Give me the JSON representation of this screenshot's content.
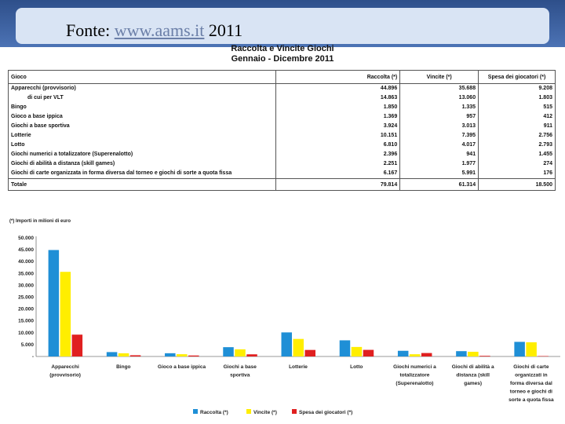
{
  "header": {
    "source_label": "Fonte: ",
    "source_link": "www.aams.it",
    "source_year": " 2011"
  },
  "document": {
    "title_line1": "Raccolta e Vincite Giochi",
    "title_line2": "Gennaio - Dicembre 2011",
    "note": "(*) Importi in milioni di euro"
  },
  "table": {
    "headers": [
      "Gioco",
      "Raccolta (*)",
      "Vincite (*)",
      "Spesa dei giocatori (*)"
    ],
    "rows": [
      [
        "Apparecchi (provvisorio)",
        "44.896",
        "35.688",
        "9.208"
      ],
      [
        "di cui per VLT",
        "14.863",
        "13.060",
        "1.803"
      ],
      [
        "Bingo",
        "1.850",
        "1.335",
        "515"
      ],
      [
        "Gioco a base ippica",
        "1.369",
        "957",
        "412"
      ],
      [
        "Giochi a base sportiva",
        "3.924",
        "3.013",
        "911"
      ],
      [
        "Lotterie",
        "10.151",
        "7.395",
        "2.756"
      ],
      [
        "Lotto",
        "6.810",
        "4.017",
        "2.793"
      ],
      [
        "Giochi numerici a totalizzatore (Superenalotto)",
        "2.396",
        "941",
        "1.455"
      ],
      [
        "Giochi di abilità a distanza (skill games)",
        "2.251",
        "1.977",
        "274"
      ],
      [
        "Giochi di carte organizzata in forma diversa dal torneo e giochi di sorte a quota fissa",
        "6.167",
        "5.991",
        "176"
      ]
    ],
    "total": [
      "Totale",
      "79.814",
      "61.314",
      "18.500"
    ]
  },
  "chart_data": {
    "type": "bar",
    "categories": [
      "Apparecchi (provvisorio)",
      "Bingo",
      "Gioco a base ippica",
      "Giochi a base sportiva",
      "Lotterie",
      "Lotto",
      "Giochi numerici a totalizzatore (Superenalotto)",
      "Giochi di abilità a distanza (skill games)",
      "Giochi di carte organizzati in forma diversa dal torneo e giochi di sorte a quota fissa"
    ],
    "category_lines": [
      [
        "Apparecchi",
        "(provvisorio)"
      ],
      [
        "Bingo"
      ],
      [
        "Gioco a base ippica"
      ],
      [
        "Giochi a base",
        "sportiva"
      ],
      [
        "Lotterie"
      ],
      [
        "Lotto"
      ],
      [
        "Giochi numerici a",
        "totalizzatore",
        "(Superenalotto)"
      ],
      [
        "Giochi di abilità a",
        "distanza (skill",
        "games)"
      ],
      [
        "Giochi di carte",
        "organizzati in",
        "forma diversa dal",
        "torneo e giochi di",
        "sorte a quota fissa"
      ]
    ],
    "series": [
      {
        "name": "Raccolta (*)",
        "color": "#1f8fd6",
        "values": [
          44896,
          1850,
          1369,
          3924,
          10151,
          6810,
          2396,
          2251,
          6167
        ]
      },
      {
        "name": "Vincite (*)",
        "color": "#ffee00",
        "values": [
          35688,
          1335,
          957,
          3013,
          7395,
          4017,
          941,
          1977,
          5991
        ]
      },
      {
        "name": "Spesa dei giocatori (*)",
        "color": "#e02020",
        "values": [
          9208,
          515,
          412,
          911,
          2756,
          2793,
          1455,
          274,
          176
        ]
      }
    ],
    "yticks": [
      "-",
      "5.000",
      "10.000",
      "15.000",
      "20.000",
      "25.000",
      "30.000",
      "35.000",
      "40.000",
      "45.000",
      "50.000"
    ],
    "ylim": [
      0,
      50000
    ],
    "grid": false,
    "legend_position": "bottom"
  }
}
